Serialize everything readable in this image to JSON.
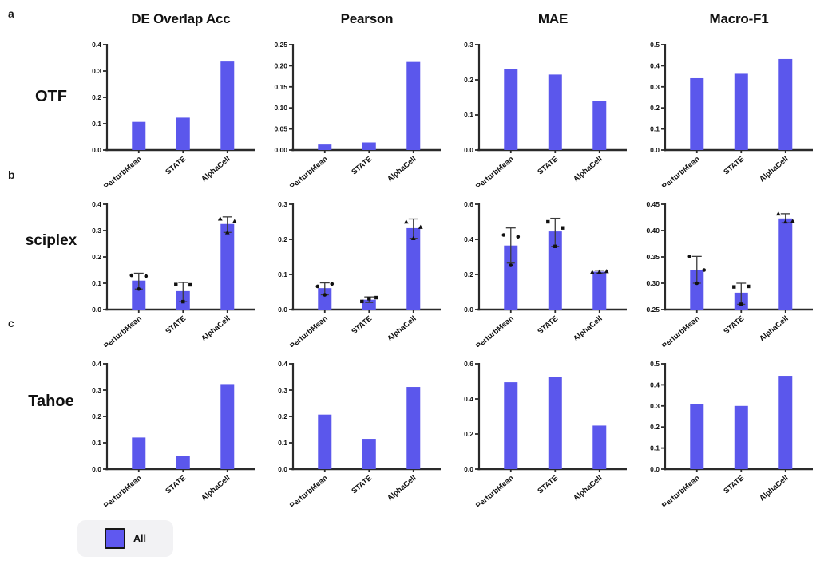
{
  "figure": {
    "panel_letters": [
      "a",
      "b",
      "c"
    ],
    "row_labels": [
      "OTF",
      "sciplex",
      "Tahoe"
    ],
    "column_titles": [
      "DE Overlap Acc",
      "Pearson",
      "MAE",
      "Macro-F1"
    ],
    "legend": {
      "label": "All"
    }
  },
  "colors": {
    "bar": "#5b57ec",
    "legend_swatch": "#5f58f0",
    "axis": "#2a2a2a",
    "point": "#111111"
  },
  "chart_data": [
    {
      "type": "bar",
      "row": "OTF",
      "metric": "DE Overlap Acc",
      "categories": [
        "PerturbMean",
        "STATE",
        "AlphaCell"
      ],
      "values": [
        0.107,
        0.123,
        0.336
      ],
      "ylim": [
        0,
        0.4
      ],
      "yticks": [
        0,
        0.1,
        0.2,
        0.3,
        0.4
      ],
      "ytick_labels": [
        "0.0",
        "0.1",
        "0.2",
        "0.3",
        "0.4"
      ]
    },
    {
      "type": "bar",
      "row": "OTF",
      "metric": "Pearson",
      "categories": [
        "PerturbMean",
        "STATE",
        "AlphaCell"
      ],
      "values": [
        0.013,
        0.018,
        0.209
      ],
      "ylim": [
        0,
        0.25
      ],
      "yticks": [
        0,
        0.05,
        0.1,
        0.15,
        0.2,
        0.25
      ],
      "ytick_labels": [
        "0.00",
        "0.05",
        "0.10",
        "0.15",
        "0.20",
        "0.25"
      ]
    },
    {
      "type": "bar",
      "row": "OTF",
      "metric": "MAE",
      "categories": [
        "PerturbMean",
        "STATE",
        "AlphaCell"
      ],
      "values": [
        0.23,
        0.215,
        0.14
      ],
      "ylim": [
        0,
        0.3
      ],
      "yticks": [
        0,
        0.1,
        0.2,
        0.3
      ],
      "ytick_labels": [
        "0.0",
        "0.1",
        "0.2",
        "0.3"
      ]
    },
    {
      "type": "bar",
      "row": "OTF",
      "metric": "Macro-F1",
      "categories": [
        "PerturbMean",
        "STATE",
        "AlphaCell"
      ],
      "values": [
        0.341,
        0.362,
        0.432
      ],
      "ylim": [
        0,
        0.5
      ],
      "yticks": [
        0,
        0.1,
        0.2,
        0.3,
        0.4,
        0.5
      ],
      "ytick_labels": [
        "0.0",
        "0.1",
        "0.2",
        "0.3",
        "0.4",
        "0.5"
      ]
    },
    {
      "type": "bar",
      "row": "sciplex",
      "metric": "DE Overlap Acc",
      "categories": [
        "PerturbMean",
        "STATE",
        "AlphaCell"
      ],
      "values": [
        0.11,
        0.07,
        0.325
      ],
      "ylim": [
        0,
        0.4
      ],
      "yticks": [
        0,
        0.1,
        0.2,
        0.3,
        0.4
      ],
      "ytick_labels": [
        "0.0",
        "0.1",
        "0.2",
        "0.3",
        "0.4"
      ],
      "errors": [
        [
          0.078,
          0.138
        ],
        [
          0.03,
          0.103
        ],
        [
          0.293,
          0.352
        ]
      ],
      "points": [
        [
          0.13,
          0.127,
          0.078
        ],
        [
          0.095,
          0.094,
          0.03
        ],
        [
          0.345,
          0.335,
          0.293
        ]
      ],
      "point_markers": [
        "circle",
        "square",
        "triangle"
      ]
    },
    {
      "type": "bar",
      "row": "sciplex",
      "metric": "Pearson",
      "categories": [
        "PerturbMean",
        "STATE",
        "AlphaCell"
      ],
      "values": [
        0.061,
        0.028,
        0.232
      ],
      "ylim": [
        0,
        0.3
      ],
      "yticks": [
        0,
        0.1,
        0.2,
        0.3
      ],
      "ytick_labels": [
        "0.0",
        "0.1",
        "0.2",
        "0.3"
      ],
      "errors": [
        [
          0.042,
          0.076
        ],
        [
          0.02,
          0.036
        ],
        [
          0.203,
          0.258
        ]
      ],
      "points": [
        [
          0.066,
          0.073,
          0.042
        ],
        [
          0.023,
          0.034,
          0.031
        ],
        [
          0.25,
          0.235,
          0.203
        ]
      ],
      "point_markers": [
        "circle",
        "square",
        "triangle"
      ]
    },
    {
      "type": "bar",
      "row": "sciplex",
      "metric": "MAE",
      "categories": [
        "PerturbMean",
        "STATE",
        "AlphaCell"
      ],
      "values": [
        0.365,
        0.445,
        0.216
      ],
      "ylim": [
        0,
        0.6
      ],
      "yticks": [
        0,
        0.2,
        0.4,
        0.6
      ],
      "ytick_labels": [
        "0.0",
        "0.2",
        "0.4",
        "0.6"
      ],
      "errors": [
        [
          0.265,
          0.465
        ],
        [
          0.36,
          0.52
        ],
        [
          0.208,
          0.224
        ]
      ],
      "points": [
        [
          0.425,
          0.415,
          0.252
        ],
        [
          0.5,
          0.465,
          0.36
        ],
        [
          0.213,
          0.218,
          0.215
        ]
      ],
      "point_markers": [
        "circle",
        "square",
        "triangle"
      ]
    },
    {
      "type": "bar",
      "row": "sciplex",
      "metric": "Macro-F1",
      "categories": [
        "PerturbMean",
        "STATE",
        "AlphaCell"
      ],
      "values": [
        0.325,
        0.282,
        0.423
      ],
      "ylim": [
        0.25,
        0.45
      ],
      "yticks": [
        0.25,
        0.3,
        0.35,
        0.4,
        0.45
      ],
      "ytick_labels": [
        "0.25",
        "0.30",
        "0.35",
        "0.40",
        "0.45"
      ],
      "errors": [
        [
          0.3,
          0.351
        ],
        [
          0.26,
          0.3
        ],
        [
          0.415,
          0.432
        ]
      ],
      "points": [
        [
          0.351,
          0.325,
          0.3
        ],
        [
          0.293,
          0.294,
          0.26
        ],
        [
          0.432,
          0.418,
          0.417
        ]
      ],
      "point_markers": [
        "circle",
        "square",
        "triangle"
      ]
    },
    {
      "type": "bar",
      "row": "Tahoe",
      "metric": "DE Overlap Acc",
      "categories": [
        "PerturbMean",
        "STATE",
        "AlphaCell"
      ],
      "values": [
        0.12,
        0.049,
        0.323
      ],
      "ylim": [
        0,
        0.4
      ],
      "yticks": [
        0,
        0.1,
        0.2,
        0.3,
        0.4
      ],
      "ytick_labels": [
        "0.0",
        "0.1",
        "0.2",
        "0.3",
        "0.4"
      ]
    },
    {
      "type": "bar",
      "row": "Tahoe",
      "metric": "Pearson",
      "categories": [
        "PerturbMean",
        "STATE",
        "AlphaCell"
      ],
      "values": [
        0.207,
        0.115,
        0.312
      ],
      "ylim": [
        0,
        0.4
      ],
      "yticks": [
        0,
        0.1,
        0.2,
        0.3,
        0.4
      ],
      "ytick_labels": [
        "0.0",
        "0.1",
        "0.2",
        "0.3",
        "0.4"
      ]
    },
    {
      "type": "bar",
      "row": "Tahoe",
      "metric": "MAE",
      "categories": [
        "PerturbMean",
        "STATE",
        "AlphaCell"
      ],
      "values": [
        0.495,
        0.527,
        0.248
      ],
      "ylim": [
        0,
        0.6
      ],
      "yticks": [
        0,
        0.2,
        0.4,
        0.6
      ],
      "ytick_labels": [
        "0.0",
        "0.2",
        "0.4",
        "0.6"
      ]
    },
    {
      "type": "bar",
      "row": "Tahoe",
      "metric": "Macro-F1",
      "categories": [
        "PerturbMean",
        "STATE",
        "AlphaCell"
      ],
      "values": [
        0.308,
        0.3,
        0.443
      ],
      "ylim": [
        0,
        0.5
      ],
      "yticks": [
        0,
        0.1,
        0.2,
        0.3,
        0.4,
        0.5
      ],
      "ytick_labels": [
        "0.0",
        "0.1",
        "0.2",
        "0.3",
        "0.4",
        "0.5"
      ]
    }
  ]
}
